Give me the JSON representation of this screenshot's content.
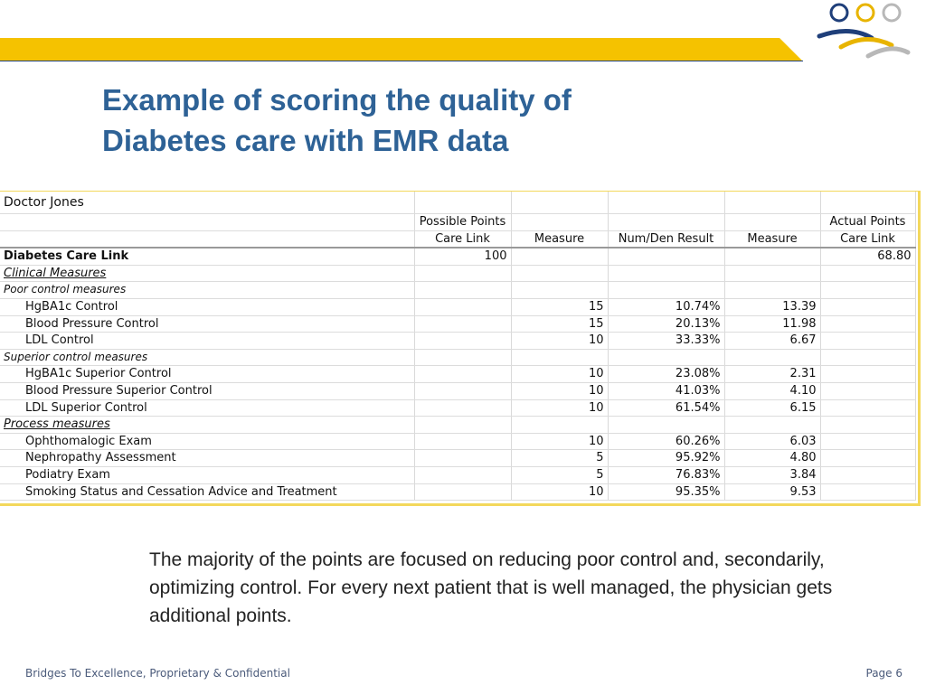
{
  "slide": {
    "title_line1": "Example of scoring the quality of",
    "title_line2": "Diabetes care with EMR data",
    "note": "The majority of the points are focused on reducing poor control and, secondarily, optimizing control. For every next patient that is well managed, the physician gets additional points.",
    "footer_left": "Bridges To Excellence, Proprietary & Confidential",
    "footer_right": "Page 6"
  },
  "colors": {
    "title": "#2e6296",
    "band": "#f5c200",
    "logo_blue": "#1f3f7a",
    "logo_gold": "#e8b400",
    "logo_gray": "#b8b8b8"
  },
  "table": {
    "doctor": "Doctor Jones",
    "header1": [
      "",
      "Possible Points",
      "",
      "",
      "",
      "Actual Points"
    ],
    "header2": [
      "",
      "Care Link",
      "Measure",
      "Num/Den Result",
      "Measure",
      "Care Link"
    ],
    "summary": {
      "label": "Diabetes Care Link",
      "possible": "100",
      "actual": "68.80"
    },
    "sections": [
      {
        "label": "Clinical Measures",
        "kind": "section"
      },
      {
        "label": "Poor control measures",
        "kind": "sub"
      },
      {
        "label": "HgBA1c Control",
        "kind": "row",
        "measure": "15",
        "result": "10.74%",
        "score": "13.39"
      },
      {
        "label": "Blood Pressure Control",
        "kind": "row",
        "measure": "15",
        "result": "20.13%",
        "score": "11.98"
      },
      {
        "label": "LDL Control",
        "kind": "row",
        "measure": "10",
        "result": "33.33%",
        "score": "6.67"
      },
      {
        "label": "Superior control measures",
        "kind": "sub"
      },
      {
        "label": "HgBA1c Superior Control",
        "kind": "row",
        "measure": "10",
        "result": "23.08%",
        "score": "2.31"
      },
      {
        "label": "Blood Pressure Superior Control",
        "kind": "row",
        "measure": "10",
        "result": "41.03%",
        "score": "4.10"
      },
      {
        "label": "LDL Superior Control",
        "kind": "row",
        "measure": "10",
        "result": "61.54%",
        "score": "6.15"
      },
      {
        "label": "Process measures",
        "kind": "section"
      },
      {
        "label": "Ophthomalogic Exam",
        "kind": "row",
        "measure": "10",
        "result": "60.26%",
        "score": "6.03"
      },
      {
        "label": "Nephropathy Assessment",
        "kind": "row",
        "measure": "5",
        "result": "95.92%",
        "score": "4.80"
      },
      {
        "label": "Podiatry Exam",
        "kind": "row",
        "measure": "5",
        "result": "76.83%",
        "score": "3.84"
      },
      {
        "label": "Smoking Status and Cessation Advice and Treatment",
        "kind": "row",
        "measure": "10",
        "result": "95.35%",
        "score": "9.53"
      }
    ]
  }
}
